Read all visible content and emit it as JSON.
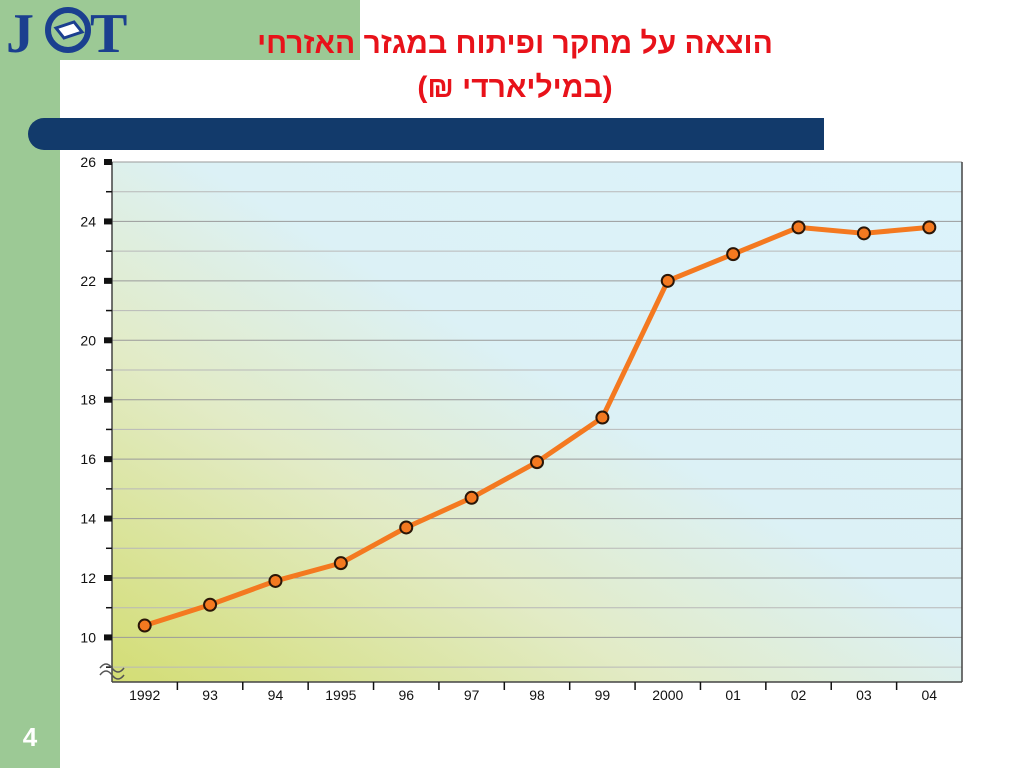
{
  "slide": {
    "logo_text": "JCT",
    "title_line1": "הוצאה על מחקר ופיתוח במגזר האזרחי",
    "title_line2": "(במיליארדי ₪)",
    "page_number": "4",
    "colors": {
      "side_green": "#9cc995",
      "title_red": "#e8121a",
      "bar_blue": "#123a6b",
      "line_orange": "#f47920"
    }
  },
  "chart_data": {
    "type": "line",
    "title": "",
    "xlabel": "",
    "ylabel": "",
    "categories": [
      "1992",
      "93",
      "94",
      "1995",
      "96",
      "97",
      "98",
      "99",
      "2000",
      "01",
      "02",
      "03",
      "04"
    ],
    "series": [
      {
        "values": [
          10.4,
          11.1,
          11.9,
          12.5,
          13.7,
          14.7,
          15.9,
          17.4,
          22.0,
          22.9,
          23.8,
          23.6,
          23.8
        ]
      }
    ],
    "y_ticks": [
      10,
      12,
      14,
      16,
      18,
      20,
      22,
      24,
      26
    ],
    "ylim": [
      8.5,
      26
    ],
    "axis_break": true,
    "grid": true
  }
}
